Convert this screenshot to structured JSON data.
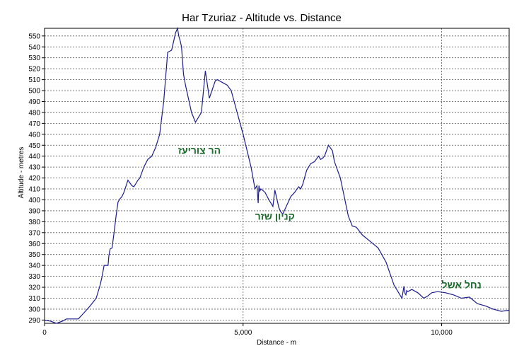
{
  "chart_data": {
    "type": "line",
    "title": "Har Tzuriaz - Altitude vs. Distance",
    "xlabel": "Distance - m",
    "ylabel": "Altitude - metres",
    "xlim": [
      0,
      11700
    ],
    "ylim": [
      287,
      557
    ],
    "x_ticks": [
      0,
      5000,
      10000
    ],
    "x_tick_labels": [
      "0",
      "5,000",
      "10,000"
    ],
    "y_ticks": [
      290,
      300,
      310,
      320,
      330,
      340,
      350,
      360,
      370,
      380,
      390,
      400,
      410,
      420,
      430,
      440,
      450,
      460,
      470,
      480,
      490,
      500,
      510,
      520,
      530,
      540,
      550
    ],
    "grid": true,
    "line_color": "#1c1c8c",
    "annotation_color": "#1a6a2a",
    "annotations": [
      {
        "text": "הר צוריעז",
        "x": 3900,
        "y": 442
      },
      {
        "text": "קניון שזר",
        "x": 5800,
        "y": 382
      },
      {
        "text": "נחל אשל",
        "x": 10500,
        "y": 319
      }
    ],
    "series": [
      {
        "x": [
          0,
          150,
          300,
          450,
          550,
          700,
          850,
          1000,
          1150,
          1300,
          1400,
          1450,
          1500,
          1600,
          1620,
          1650,
          1700,
          1750,
          1800,
          1850,
          1900,
          1950,
          2000,
          2100,
          2200,
          2250,
          2300,
          2350,
          2400,
          2500,
          2600,
          2700,
          2800,
          2900,
          3000,
          3100,
          3200,
          3300,
          3350,
          3380,
          3420,
          3450,
          3500,
          3550,
          3700,
          3800,
          3950,
          4050,
          4150,
          4300,
          4350,
          4450,
          4600,
          4700,
          4850,
          5000,
          5200,
          5300,
          5350,
          5380,
          5400,
          5420,
          5450,
          5550,
          5650,
          5700,
          5750,
          5800,
          5900,
          5950,
          6000,
          6100,
          6200,
          6300,
          6400,
          6450,
          6500,
          6600,
          6700,
          6800,
          6900,
          6950,
          7000,
          7050,
          7150,
          7250,
          7300,
          7450,
          7650,
          7750,
          7850,
          8000,
          8200,
          8400,
          8600,
          8800,
          8900,
          9000,
          9050,
          9080,
          9100,
          9120,
          9150,
          9250,
          9400,
          9550,
          9650,
          9750,
          9900,
          10100,
          10300,
          10500,
          10700,
          10900,
          11100,
          11300,
          11500,
          11700
        ],
        "y": [
          290,
          289,
          287,
          289,
          291,
          291,
          291,
          297,
          303,
          310,
          322,
          330,
          340,
          340,
          349,
          355,
          356,
          370,
          385,
          398,
          401,
          403,
          407,
          418,
          413,
          412,
          415,
          418,
          420,
          430,
          437,
          440,
          448,
          460,
          490,
          535,
          537,
          553,
          557,
          550,
          545,
          540,
          515,
          505,
          480,
          471,
          480,
          518,
          493,
          509,
          510,
          508,
          505,
          500,
          480,
          460,
          430,
          410,
          413,
          397,
          413,
          408,
          410,
          407,
          400,
          397,
          394,
          409,
          393,
          389,
          387,
          395,
          403,
          407,
          412,
          410,
          414,
          427,
          433,
          435,
          440,
          437,
          438,
          440,
          450,
          445,
          435,
          420,
          385,
          376,
          375,
          368,
          362,
          356,
          343,
          322,
          316,
          310,
          321,
          314,
          313,
          317,
          316,
          318,
          315,
          310,
          312,
          315,
          316,
          315,
          313,
          310,
          311,
          305,
          303,
          300,
          298,
          299
        ]
      }
    ]
  }
}
